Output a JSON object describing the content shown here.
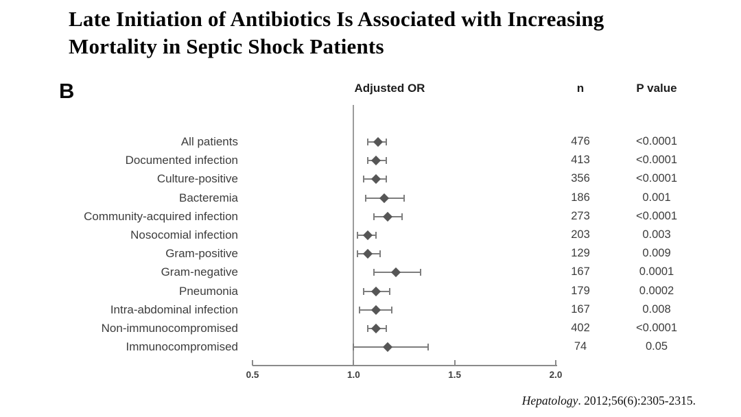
{
  "slide": {
    "title_line1": "Late Initiation of Antibiotics Is Associated with Increasing",
    "title_line2": "Mortality in Septic Shock Patients",
    "panel_label": "B",
    "citation_journal": "Hepatology",
    "citation_rest": ". 2012;56(6):2305-2315."
  },
  "colors": {
    "marker": "#565656",
    "ci_line": "#7d7d7d",
    "reference_line": "#9b9b9b",
    "axis": "#8a8a8a",
    "label_text": "#3c3c3c",
    "title_text": "#050505"
  },
  "chart_data": {
    "type": "forest",
    "panel": "B",
    "columns": {
      "plot": "Adjusted OR",
      "n": "n",
      "p": "P value"
    },
    "xlim": [
      0.5,
      2.0
    ],
    "x_ticks": [
      "0.5",
      "1.0",
      "1.5",
      "2.0"
    ],
    "reference_line": 1.0,
    "legend_position": "none",
    "grid": false,
    "rows": [
      {
        "label": "All patients",
        "or": 1.12,
        "ci_low": 1.07,
        "ci_high": 1.16,
        "n": "476",
        "p": "<0.0001"
      },
      {
        "label": "Documented infection",
        "or": 1.11,
        "ci_low": 1.07,
        "ci_high": 1.16,
        "n": "413",
        "p": "<0.0001"
      },
      {
        "label": "Culture-positive",
        "or": 1.11,
        "ci_low": 1.05,
        "ci_high": 1.16,
        "n": "356",
        "p": "<0.0001"
      },
      {
        "label": "Bacteremia",
        "or": 1.15,
        "ci_low": 1.06,
        "ci_high": 1.25,
        "n": "186",
        "p": "0.001"
      },
      {
        "label": "Community-acquired infection",
        "or": 1.17,
        "ci_low": 1.1,
        "ci_high": 1.24,
        "n": "273",
        "p": "<0.0001"
      },
      {
        "label": "Nosocomial infection",
        "or": 1.07,
        "ci_low": 1.02,
        "ci_high": 1.11,
        "n": "203",
        "p": "0.003"
      },
      {
        "label": "Gram-positive",
        "or": 1.07,
        "ci_low": 1.02,
        "ci_high": 1.13,
        "n": "129",
        "p": "0.009"
      },
      {
        "label": "Gram-negative",
        "or": 1.21,
        "ci_low": 1.1,
        "ci_high": 1.33,
        "n": "167",
        "p": "0.0001"
      },
      {
        "label": "Pneumonia",
        "or": 1.11,
        "ci_low": 1.05,
        "ci_high": 1.18,
        "n": "179",
        "p": "0.0002"
      },
      {
        "label": "Intra-abdominal infection",
        "or": 1.11,
        "ci_low": 1.03,
        "ci_high": 1.19,
        "n": "167",
        "p": "0.008"
      },
      {
        "label": "Non-immunocompromised",
        "or": 1.11,
        "ci_low": 1.07,
        "ci_high": 1.16,
        "n": "402",
        "p": "<0.0001"
      },
      {
        "label": "Immunocompromised",
        "or": 1.17,
        "ci_low": 1.0,
        "ci_high": 1.37,
        "n": "74",
        "p": "0.05"
      }
    ]
  }
}
